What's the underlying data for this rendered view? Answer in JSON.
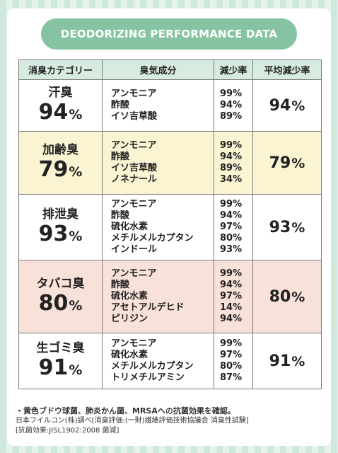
{
  "title": "DEODORIZING PERFORMANCE DATA",
  "table": {
    "headers": [
      "消臭カテゴリー",
      "臭気成分",
      "減少率",
      "平均減少率"
    ],
    "rows": [
      {
        "category": "汗臭",
        "percent": "94",
        "unit": "%",
        "components": [
          "アンモニア",
          "酢酸",
          "イソ吉草酸"
        ],
        "reductions": [
          "99%",
          "94%",
          "89%"
        ],
        "average": "94",
        "average_unit": "%"
      },
      {
        "category": "加齢臭",
        "percent": "79",
        "unit": "%",
        "components": [
          "アンモニア",
          "酢酸",
          "イソ吉草酸",
          "ノネナール"
        ],
        "reductions": [
          "99%",
          "94%",
          "89%",
          "34%"
        ],
        "average": "79",
        "average_unit": "%"
      },
      {
        "category": "排泄臭",
        "percent": "93",
        "unit": "%",
        "components": [
          "アンモニア",
          "酢酸",
          "硫化水素",
          "メチルメルカプタン",
          "インドール"
        ],
        "reductions": [
          "99%",
          "94%",
          "97%",
          "80%",
          "93%"
        ],
        "average": "93",
        "average_unit": "%"
      },
      {
        "category": "タバコ臭",
        "percent": "80",
        "unit": "%",
        "components": [
          "アンモニア",
          "酢酸",
          "硫化水素",
          "アセトアルデヒド",
          "ピリジン"
        ],
        "reductions": [
          "99%",
          "94%",
          "97%",
          "14%",
          "94%"
        ],
        "average": "80",
        "average_unit": "%"
      },
      {
        "category": "生ゴミ臭",
        "percent": "91",
        "unit": "%",
        "components": [
          "アンモニア",
          "硫化水素",
          "メチルメルカプタン",
          "トリメチルアミン"
        ],
        "reductions": [
          "99%",
          "97%",
          "80%",
          "87%"
        ],
        "average": "91",
        "average_unit": "%"
      }
    ]
  },
  "footer": {
    "line1": "・黄色ブドウ球菌、肺炎かん菌、MRSAへの抗菌効果を確認。",
    "line2": "日本フイルコン(株)調べ[消臭評価:(一財)繊維評価技術協議会 消臭性試験]",
    "line3": "[抗菌効果:JISL1902:2008 菌減]"
  },
  "colors": {
    "accent": "#86c3a2",
    "header_bg": "#d7ebe0",
    "row_yellow": "#fbf4d3",
    "row_pink": "#f8e1d9",
    "stripe_dark": "#cfe8dc",
    "stripe_light": "#e4f3ec"
  }
}
